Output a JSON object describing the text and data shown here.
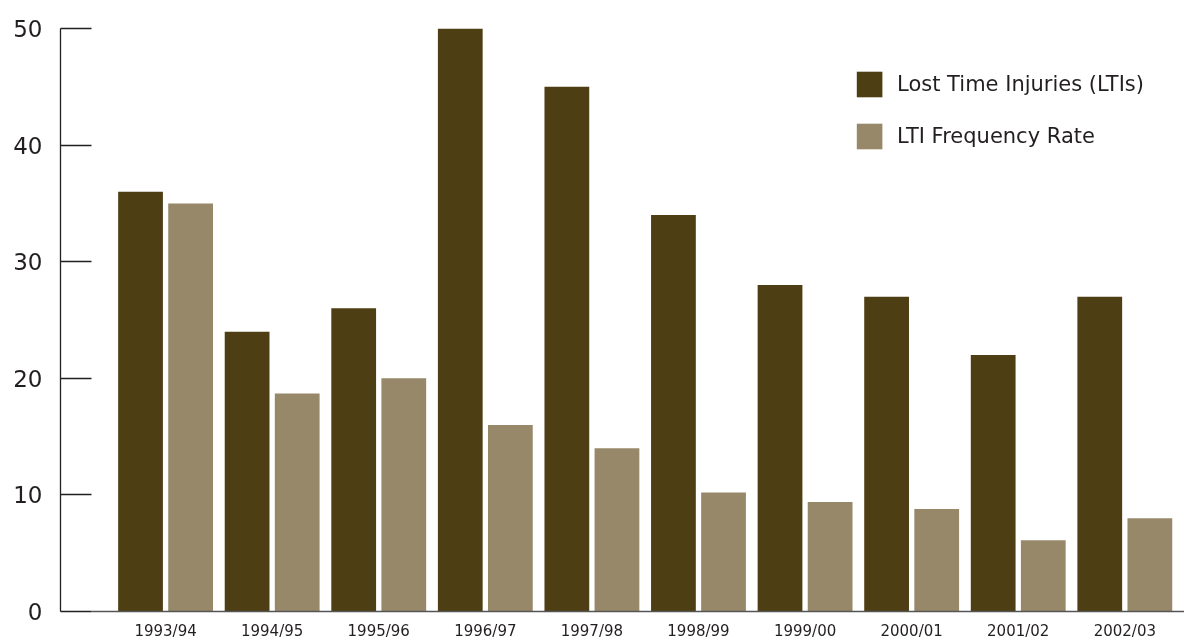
{
  "chart_data": {
    "type": "bar",
    "categories": [
      "1993/94",
      "1994/95",
      "1995/96",
      "1996/97",
      "1997/98",
      "1998/99",
      "1999/00",
      "2000/01",
      "2001/02",
      "2002/03"
    ],
    "series": [
      {
        "name": "Lost Time Injuries (LTIs)",
        "color": "#4e3e13",
        "values": [
          36,
          24,
          26,
          50,
          45,
          34,
          28,
          27,
          22,
          27
        ]
      },
      {
        "name": "LTI Frequency Rate",
        "color": "#978869",
        "values": [
          35,
          18.7,
          20,
          16,
          14,
          10.2,
          9.4,
          8.8,
          6.1,
          8.0
        ]
      }
    ],
    "ylim": [
      0,
      50
    ],
    "yticks": [
      0,
      10,
      20,
      30,
      40,
      50
    ],
    "grid": false,
    "legend": "top right"
  }
}
